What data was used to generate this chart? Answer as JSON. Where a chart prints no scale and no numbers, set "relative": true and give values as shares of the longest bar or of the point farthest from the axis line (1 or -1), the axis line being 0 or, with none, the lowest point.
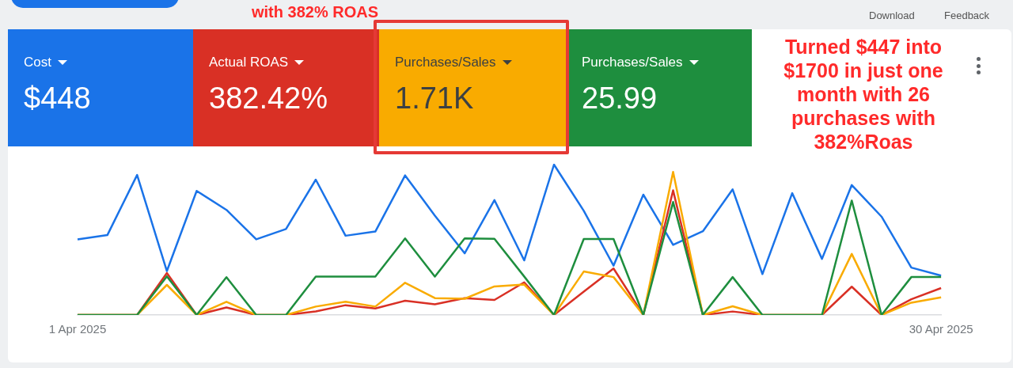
{
  "chart_data": {
    "type": "line",
    "relative": true,
    "marker": "none",
    "line_style": "solid",
    "categories": [
      "1 Apr 2025",
      null,
      null,
      null,
      null,
      null,
      null,
      null,
      null,
      null,
      null,
      null,
      null,
      null,
      null,
      null,
      null,
      null,
      null,
      null,
      null,
      null,
      null,
      null,
      null,
      null,
      null,
      null,
      null,
      "30 Apr 2025"
    ],
    "series": [
      {
        "color": "#1a73e8",
        "values": [
          0.503,
          0.531,
          0.931,
          0.292,
          0.825,
          0.699,
          0.503,
          0.572,
          0.9,
          0.527,
          0.555,
          0.928,
          0.661,
          0.41,
          0.764,
          0.363,
          1,
          0.693,
          0.328,
          0.8,
          0.466,
          0.557,
          0.835,
          0.272,
          0.81,
          0.373,
          0.864,
          0.654,
          0.315,
          0.262
        ]
      },
      {
        "color": "#d93025",
        "values": [
          0,
          0,
          0,
          0.279,
          0,
          0.05,
          0,
          0,
          0.024,
          0.065,
          0.043,
          0.095,
          0.071,
          0.112,
          0.1,
          0.217,
          0,
          0.155,
          0.309,
          0,
          0.829,
          0,
          0.023,
          0,
          0,
          0,
          0.188,
          0,
          0.105,
          0.179
        ]
      },
      {
        "color": "#f9ab00",
        "values": [
          0,
          0,
          0,
          0.2,
          0,
          0.088,
          0,
          0,
          0.056,
          0.088,
          0.056,
          0.214,
          0.112,
          0.108,
          0.19,
          0.202,
          0,
          0.289,
          0.252,
          0,
          0.951,
          0,
          0.058,
          0,
          0,
          0,
          0.406,
          0,
          0.082,
          0.117
        ]
      },
      {
        "color": "#1e8e3e",
        "values": [
          0,
          0,
          0,
          0.257,
          0,
          0.251,
          0,
          0,
          0.255,
          0.255,
          0.255,
          0.509,
          0.255,
          0.509,
          0.507,
          0.256,
          0,
          0.505,
          0.505,
          0,
          0.751,
          0,
          0.252,
          0,
          0,
          0,
          0.761,
          0,
          0.252,
          0.252
        ]
      }
    ],
    "annotations": [
      "Cost",
      "$448",
      "Actual ROAS",
      "382.42%",
      "Purchases/Sales",
      "1.71K",
      "Purchases/Sales",
      "25.99",
      "Turned $447 into $1700 in just one month with 26 purchases with 382%Roas",
      "with 382% ROAS",
      "Download",
      "Feedback"
    ]
  }
}
